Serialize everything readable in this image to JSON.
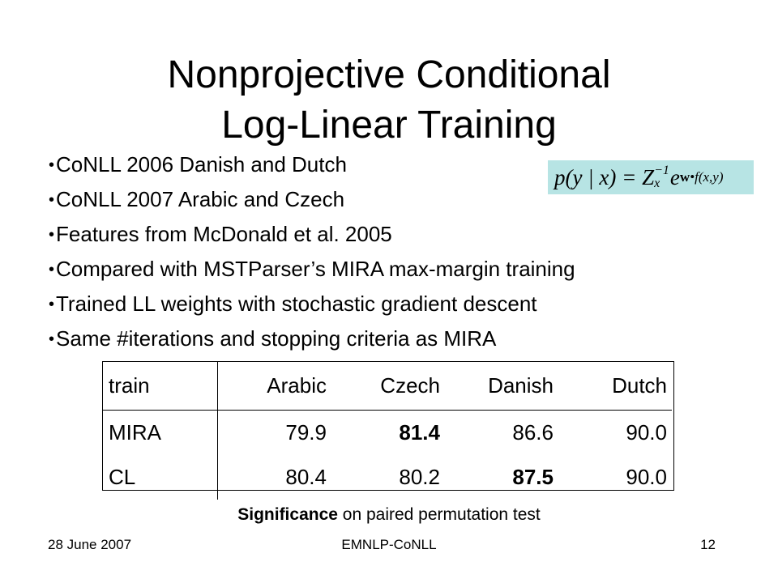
{
  "slide": {
    "title_line1": "Nonprojective Conditional",
    "title_line2": "Log-Linear Training",
    "bullets": [
      "CoNLL 2006  Danish and Dutch",
      "CoNLL 2007 Arabic and Czech",
      "Features from McDonald et al. 2005",
      "Compared with MSTParser’s MIRA max-margin training",
      "Trained LL weights with stochastic gradient descent",
      "Same #iterations and stopping criteria as MIRA"
    ],
    "formula": {
      "lhs": "p(y | x) = Z",
      "z_sup": "−1",
      "z_sub": "x",
      "e": "e",
      "exp_bold": "w",
      "exp_rest": "•f(x,y)"
    },
    "table": {
      "headers": [
        "train",
        "Arabic",
        "Czech",
        "Danish",
        "Dutch"
      ],
      "rows": [
        {
          "cells": [
            "MIRA",
            "79.9",
            "81.4",
            "86.6",
            "90.0"
          ],
          "bold": [
            false,
            false,
            true,
            false,
            false
          ]
        },
        {
          "cells": [
            "CL",
            "80.4",
            "80.2",
            "87.5",
            "90.0"
          ],
          "bold": [
            false,
            false,
            false,
            true,
            false
          ]
        }
      ]
    },
    "caption_bold": "Significance",
    "caption_rest": " on paired permutation test",
    "footer": {
      "date": "28 June 2007",
      "venue": "EMNLP-CoNLL",
      "page": "12"
    }
  }
}
